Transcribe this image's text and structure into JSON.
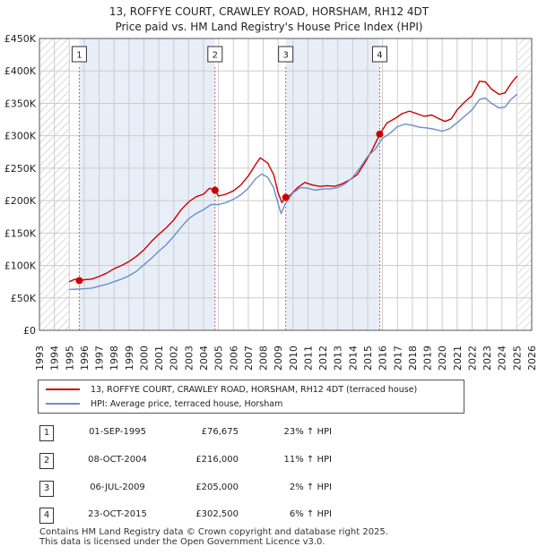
{
  "title_line1": "13, ROFFYE COURT, CRAWLEY ROAD, HORSHAM, RH12 4DT",
  "title_line2": "Price paid vs. HM Land Registry's House Price Index (HPI)",
  "colors": {
    "red": "#cc0000",
    "blue": "#6a8fc8",
    "grid": "#cccccc",
    "hatch": "#b8b8b8",
    "band": "#e8eef7",
    "marker_line": "#e06060"
  },
  "chart_data": {
    "type": "line",
    "xlim": [
      1993,
      2026
    ],
    "ylim": [
      0,
      450000
    ],
    "y_ticks": [
      0,
      50000,
      100000,
      150000,
      200000,
      250000,
      300000,
      350000,
      400000,
      450000
    ],
    "y_tick_labels": [
      "£0",
      "£50K",
      "£100K",
      "£150K",
      "£200K",
      "£250K",
      "£300K",
      "£350K",
      "£400K",
      "£450K"
    ],
    "x_ticks": [
      1993,
      1994,
      1995,
      1996,
      1997,
      1998,
      1999,
      2000,
      2001,
      2002,
      2003,
      2004,
      2005,
      2006,
      2007,
      2008,
      2009,
      2010,
      2011,
      2012,
      2013,
      2014,
      2015,
      2016,
      2017,
      2018,
      2019,
      2020,
      2021,
      2022,
      2023,
      2024,
      2025,
      2026
    ],
    "x_tick_labels": [
      "1993",
      "1994",
      "1995",
      "1996",
      "1997",
      "1998",
      "1999",
      "2000",
      "2001",
      "2002",
      "2003",
      "2004",
      "2005",
      "2006",
      "2007",
      "2008",
      "2009",
      "2010",
      "2011",
      "2012",
      "2013",
      "2014",
      "2015",
      "2016",
      "2017",
      "2018",
      "2019",
      "2020",
      "2021",
      "2022",
      "2023",
      "2024",
      "2025",
      "2026"
    ],
    "hatched_ranges": [
      [
        1993,
        1995.0
      ],
      [
        2025.1,
        2026
      ]
    ],
    "shaded_bands": [
      [
        1995.67,
        2004.77
      ],
      [
        2009.51,
        2015.81
      ]
    ],
    "series": [
      {
        "name": "13, ROFFYE COURT, CRAWLEY ROAD, HORSHAM, RH12 4DT (terraced house)",
        "color": "#cc0000",
        "points": [
          [
            1995.0,
            75000
          ],
          [
            1995.4,
            79000
          ],
          [
            1995.67,
            76675
          ],
          [
            1996.0,
            78000
          ],
          [
            1996.5,
            79000
          ],
          [
            1997.0,
            83000
          ],
          [
            1997.5,
            88000
          ],
          [
            1998.0,
            95000
          ],
          [
            1998.5,
            100000
          ],
          [
            1999.0,
            106000
          ],
          [
            1999.5,
            114000
          ],
          [
            2000.0,
            124000
          ],
          [
            2000.5,
            137000
          ],
          [
            2001.0,
            148000
          ],
          [
            2001.5,
            158000
          ],
          [
            2002.0,
            170000
          ],
          [
            2002.5,
            186000
          ],
          [
            2003.0,
            198000
          ],
          [
            2003.5,
            206000
          ],
          [
            2004.0,
            210000
          ],
          [
            2004.4,
            219000
          ],
          [
            2004.77,
            216000
          ],
          [
            2005.0,
            207000
          ],
          [
            2005.5,
            210000
          ],
          [
            2006.0,
            215000
          ],
          [
            2006.5,
            224000
          ],
          [
            2007.0,
            238000
          ],
          [
            2007.5,
            256000
          ],
          [
            2007.8,
            266000
          ],
          [
            2008.3,
            258000
          ],
          [
            2008.7,
            240000
          ],
          [
            2009.0,
            212000
          ],
          [
            2009.25,
            197000
          ],
          [
            2009.51,
            205000
          ],
          [
            2009.8,
            208000
          ],
          [
            2010.3,
            220000
          ],
          [
            2010.8,
            228000
          ],
          [
            2011.3,
            224000
          ],
          [
            2011.8,
            222000
          ],
          [
            2012.3,
            223000
          ],
          [
            2012.8,
            222000
          ],
          [
            2013.3,
            226000
          ],
          [
            2013.8,
            232000
          ],
          [
            2014.3,
            240000
          ],
          [
            2014.8,
            258000
          ],
          [
            2015.3,
            278000
          ],
          [
            2015.81,
            302500
          ],
          [
            2016.3,
            320000
          ],
          [
            2016.8,
            326000
          ],
          [
            2017.3,
            334000
          ],
          [
            2017.8,
            338000
          ],
          [
            2018.3,
            334000
          ],
          [
            2018.8,
            330000
          ],
          [
            2019.3,
            332000
          ],
          [
            2019.8,
            326000
          ],
          [
            2020.2,
            322000
          ],
          [
            2020.6,
            326000
          ],
          [
            2021.0,
            340000
          ],
          [
            2021.5,
            352000
          ],
          [
            2022.0,
            362000
          ],
          [
            2022.5,
            384000
          ],
          [
            2022.9,
            383000
          ],
          [
            2023.3,
            372000
          ],
          [
            2023.8,
            364000
          ],
          [
            2024.2,
            366000
          ],
          [
            2024.6,
            380000
          ],
          [
            2024.9,
            389000
          ],
          [
            2025.05,
            392000
          ]
        ]
      },
      {
        "name": "HPI: Average price, terraced house, Horsham",
        "color": "#6a8fc8",
        "points": [
          [
            1995.0,
            63000
          ],
          [
            1995.5,
            63500
          ],
          [
            1996.0,
            64000
          ],
          [
            1996.5,
            65000
          ],
          [
            1997.0,
            68000
          ],
          [
            1997.5,
            71000
          ],
          [
            1998.0,
            75000
          ],
          [
            1998.5,
            79000
          ],
          [
            1999.0,
            84000
          ],
          [
            1999.5,
            91000
          ],
          [
            2000.0,
            101000
          ],
          [
            2000.5,
            111000
          ],
          [
            2001.0,
            122000
          ],
          [
            2001.5,
            132000
          ],
          [
            2002.0,
            145000
          ],
          [
            2002.5,
            159000
          ],
          [
            2003.0,
            172000
          ],
          [
            2003.5,
            180000
          ],
          [
            2004.0,
            186000
          ],
          [
            2004.5,
            194000
          ],
          [
            2005.0,
            194000
          ],
          [
            2005.5,
            197000
          ],
          [
            2006.0,
            202000
          ],
          [
            2006.5,
            209000
          ],
          [
            2007.0,
            219000
          ],
          [
            2007.5,
            234000
          ],
          [
            2007.9,
            241000
          ],
          [
            2008.3,
            236000
          ],
          [
            2008.7,
            220000
          ],
          [
            2009.0,
            195000
          ],
          [
            2009.2,
            180000
          ],
          [
            2009.5,
            196000
          ],
          [
            2010.0,
            212000
          ],
          [
            2010.5,
            220000
          ],
          [
            2011.0,
            219000
          ],
          [
            2011.5,
            216000
          ],
          [
            2012.0,
            218000
          ],
          [
            2012.5,
            218000
          ],
          [
            2013.0,
            220000
          ],
          [
            2013.5,
            226000
          ],
          [
            2014.0,
            236000
          ],
          [
            2014.5,
            251000
          ],
          [
            2015.0,
            268000
          ],
          [
            2015.5,
            279000
          ],
          [
            2016.0,
            296000
          ],
          [
            2016.5,
            304000
          ],
          [
            2017.0,
            314000
          ],
          [
            2017.5,
            318000
          ],
          [
            2018.0,
            316000
          ],
          [
            2018.5,
            313000
          ],
          [
            2019.0,
            312000
          ],
          [
            2019.5,
            310000
          ],
          [
            2020.0,
            307000
          ],
          [
            2020.5,
            311000
          ],
          [
            2021.0,
            320000
          ],
          [
            2021.5,
            330000
          ],
          [
            2022.0,
            340000
          ],
          [
            2022.5,
            356000
          ],
          [
            2022.9,
            358000
          ],
          [
            2023.3,
            350000
          ],
          [
            2023.8,
            343000
          ],
          [
            2024.2,
            344000
          ],
          [
            2024.6,
            356000
          ],
          [
            2024.9,
            362000
          ],
          [
            2025.05,
            364000
          ]
        ]
      }
    ],
    "sale_markers": [
      {
        "label": "1",
        "x": 1995.67,
        "y": 76675
      },
      {
        "label": "2",
        "x": 2004.77,
        "y": 216000
      },
      {
        "label": "3",
        "x": 2009.51,
        "y": 205000
      },
      {
        "label": "4",
        "x": 2015.81,
        "y": 302500
      }
    ]
  },
  "legend": {
    "property": "13, ROFFYE COURT, CRAWLEY ROAD, HORSHAM, RH12 4DT (terraced house)",
    "hpi": "HPI: Average price, terraced house, Horsham"
  },
  "transactions": [
    {
      "num": "1",
      "date": "01-SEP-1995",
      "price": "£76,675",
      "hpi": "23% ↑ HPI"
    },
    {
      "num": "2",
      "date": "08-OCT-2004",
      "price": "£216,000",
      "hpi": "11% ↑ HPI"
    },
    {
      "num": "3",
      "date": "06-JUL-2009",
      "price": "£205,000",
      "hpi": "2% ↑ HPI"
    },
    {
      "num": "4",
      "date": "23-OCT-2015",
      "price": "£302,500",
      "hpi": "6% ↑ HPI"
    }
  ],
  "footer_line1": "Contains HM Land Registry data © Crown copyright and database right 2025.",
  "footer_line2": "This data is licensed under the Open Government Licence v3.0."
}
